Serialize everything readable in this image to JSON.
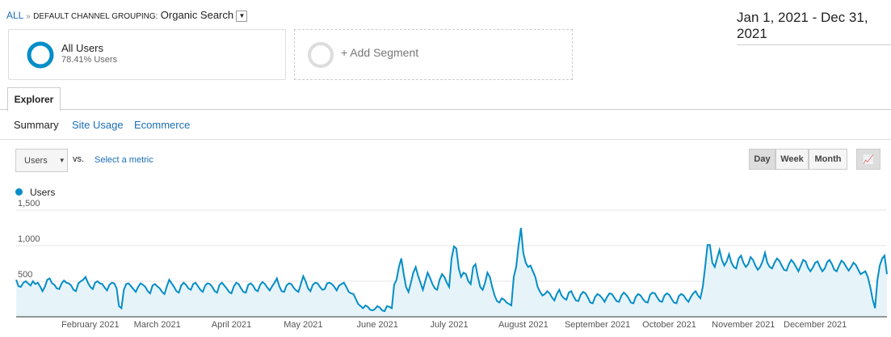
{
  "header": {
    "all": "ALL",
    "separator": "»",
    "grouping": "DEFAULT CHANNEL GROUPING:",
    "channel": "Organic Search",
    "date_range": "Jan 1, 2021 - Dec 31, 2021"
  },
  "segments": [
    {
      "name": "All Users",
      "detail": "78.41% Users"
    },
    {
      "name": "+ Add Segment"
    }
  ],
  "tabs": [
    "Explorer"
  ],
  "subtabs": [
    "Summary",
    "Site Usage",
    "Ecommerce"
  ],
  "controls": {
    "metric": "Users",
    "vs": "vs.",
    "select_metric": "Select a metric",
    "periods": [
      "Day",
      "Week",
      "Month"
    ]
  },
  "chart_data": {
    "type": "area",
    "ylim": [
      0,
      1500
    ],
    "yticks": [
      500,
      {
        "value": 1000,
        "label": "1,000"
      },
      {
        "value": 1500,
        "label": "1,500"
      }
    ],
    "grid": true,
    "xticks": [
      {
        "value": 31,
        "label": "February 2021"
      },
      {
        "value": 59,
        "label": "March 2021"
      },
      {
        "value": 90,
        "label": "April 2021"
      },
      {
        "value": 120,
        "label": "May 2021"
      },
      {
        "value": 151,
        "label": "June 2021"
      },
      {
        "value": 181,
        "label": "July 2021"
      },
      {
        "value": 212,
        "label": "August 2021"
      },
      {
        "value": 243,
        "label": "September 2021"
      },
      {
        "value": 273,
        "label": "October 2021"
      },
      {
        "value": 304,
        "label": "November 2021"
      },
      {
        "value": 334,
        "label": "December 2021"
      }
    ],
    "series": [
      {
        "name": "Users",
        "color": "#058dc7",
        "values": [
          520,
          430,
          420,
          480,
          500,
          470,
          440,
          500,
          460,
          480,
          430,
          360,
          420,
          520,
          540,
          470,
          450,
          400,
          390,
          470,
          510,
          480,
          470,
          440,
          380,
          360,
          470,
          500,
          520,
          560,
          480,
          420,
          390,
          480,
          500,
          470,
          460,
          410,
          370,
          450,
          480,
          470,
          400,
          150,
          120,
          380,
          460,
          470,
          430,
          390,
          350,
          420,
          470,
          450,
          420,
          360,
          330,
          440,
          460,
          430,
          400,
          350,
          320,
          430,
          520,
          470,
          420,
          360,
          340,
          440,
          480,
          450,
          400,
          380,
          460,
          480,
          430,
          380,
          350,
          440,
          470,
          460,
          420,
          360,
          340,
          450,
          480,
          440,
          400,
          350,
          330,
          430,
          480,
          460,
          400,
          350,
          340,
          450,
          470,
          440,
          380,
          360,
          450,
          490,
          460,
          410,
          370,
          430,
          480,
          540,
          430,
          360,
          350,
          440,
          470,
          460,
          410,
          370,
          350,
          460,
          570,
          500,
          400,
          360,
          450,
          480,
          470,
          420,
          380,
          390,
          470,
          480,
          460,
          420,
          370,
          440,
          460,
          480,
          420,
          350,
          330,
          320,
          250,
          180,
          150,
          120,
          160,
          140,
          100,
          90,
          110,
          150,
          130,
          90,
          80,
          150,
          140,
          120,
          450,
          520,
          700,
          820,
          600,
          420,
          350,
          480,
          620,
          700,
          580,
          480,
          380,
          500,
          620,
          550,
          460,
          400,
          380,
          520,
          600,
          560,
          480,
          420,
          820,
          990,
          960,
          680,
          560,
          620,
          600,
          500,
          460,
          700,
          740,
          560,
          420,
          380,
          480,
          620,
          560,
          420,
          300,
          220,
          200,
          260,
          240,
          200,
          180,
          160,
          560,
          700,
          1000,
          1250,
          900,
          760,
          700,
          720,
          640,
          560,
          420,
          350,
          300,
          320,
          360,
          330,
          270,
          230,
          320,
          380,
          300,
          260,
          240,
          340,
          360,
          290,
          230,
          220,
          310,
          350,
          330,
          270,
          200,
          190,
          280,
          320,
          300,
          260,
          210,
          280,
          330,
          320,
          270,
          220,
          210,
          300,
          340,
          310,
          260,
          200,
          190,
          280,
          320,
          300,
          250,
          210,
          200,
          310,
          340,
          330,
          270,
          220,
          210,
          300,
          330,
          310,
          250,
          200,
          190,
          290,
          320,
          300,
          250,
          210,
          280,
          330,
          360,
          300,
          260,
          420,
          700,
          1010,
          1010,
          760,
          700,
          820,
          940,
          800,
          720,
          780,
          880,
          760,
          700,
          680,
          820,
          860,
          760,
          700,
          740,
          840,
          800,
          720,
          660,
          700,
          780,
          900,
          760,
          700,
          680,
          760,
          820,
          790,
          720,
          660,
          650,
          740,
          800,
          760,
          700,
          640,
          720,
          800,
          780,
          690,
          640,
          690,
          760,
          780,
          700,
          640,
          680,
          770,
          800,
          740,
          660,
          640,
          720,
          790,
          760,
          700,
          650,
          700,
          760,
          730,
          660,
          600,
          620,
          640,
          560,
          420,
          250,
          120,
          520,
          720,
          820,
          860,
          600
        ]
      }
    ]
  }
}
